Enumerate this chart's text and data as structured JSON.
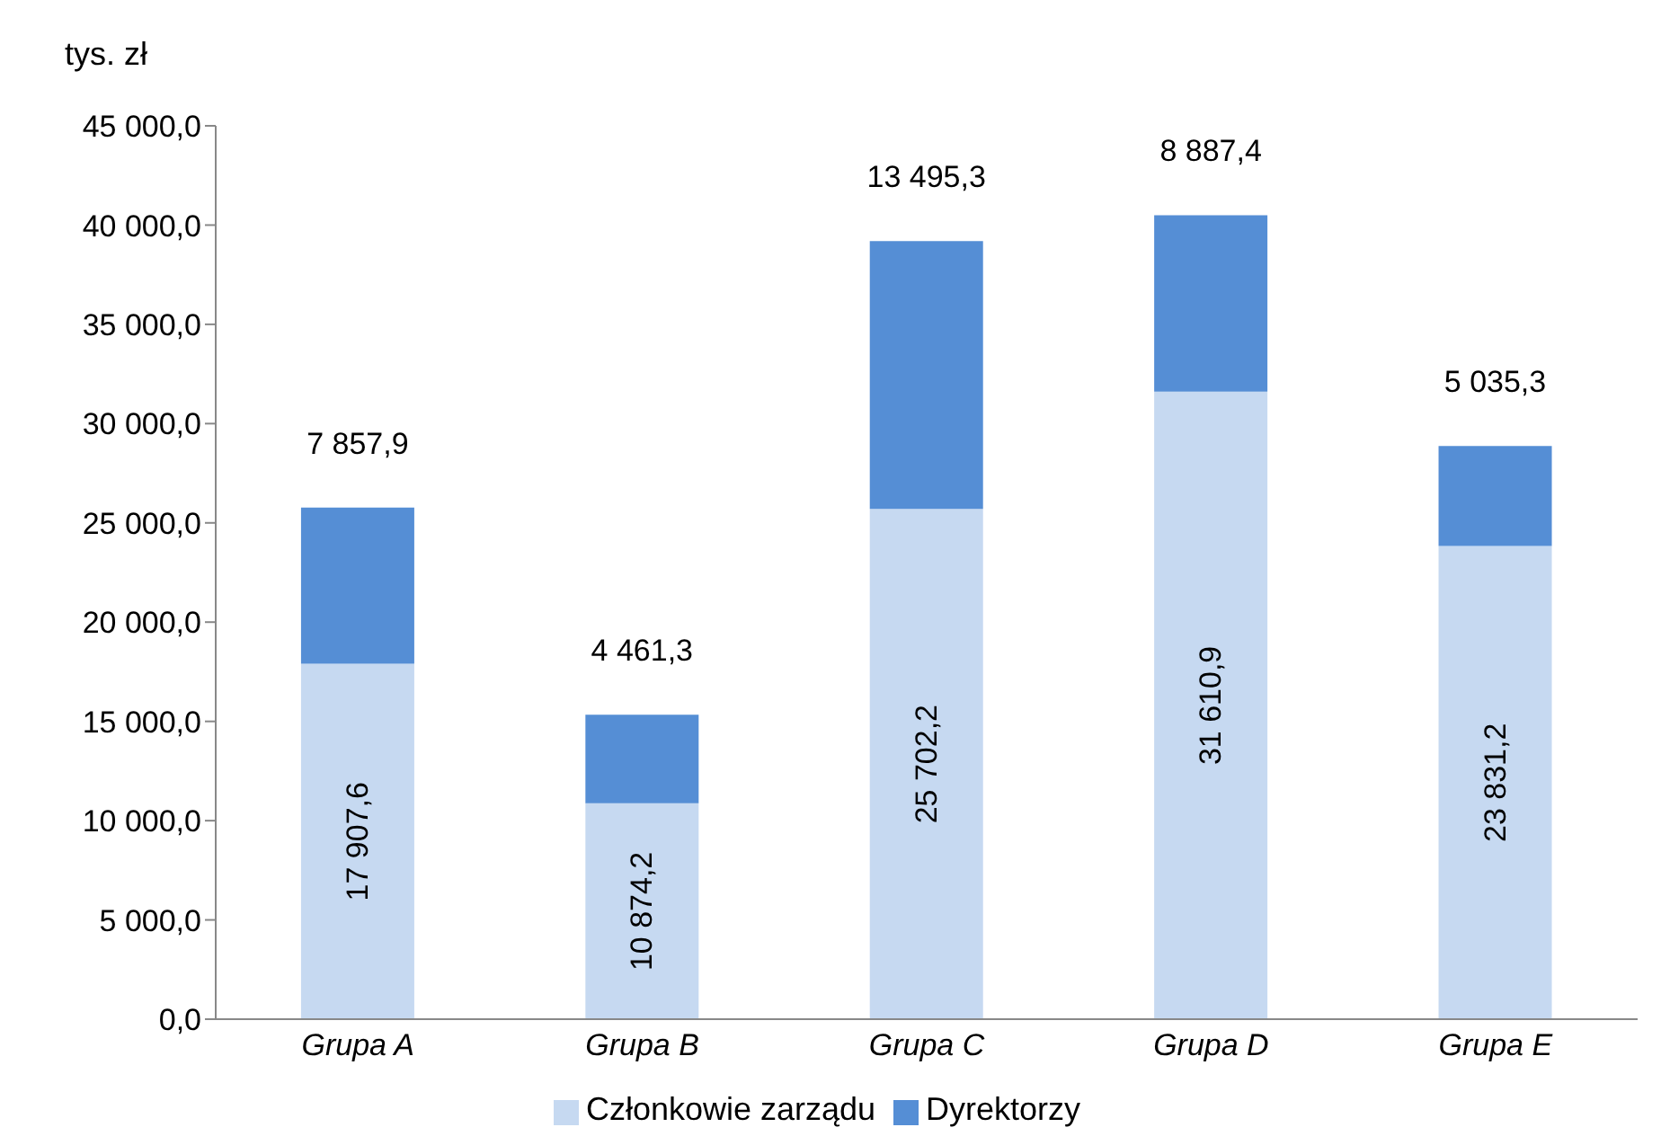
{
  "chart_data": {
    "type": "bar",
    "stacked": true,
    "ylabel": "tys. zł",
    "categories": [
      "Grupa A",
      "Grupa B",
      "Grupa C",
      "Grupa D",
      "Grupa E"
    ],
    "series": [
      {
        "name": "Członkowie zarządu",
        "color": "#c6d9f1",
        "values": [
          17907.6,
          10874.2,
          25702.2,
          31610.9,
          23831.2
        ],
        "value_labels": [
          "17 907,6",
          "10 874,2",
          "25 702,2",
          "31 610,9",
          "23 831,2"
        ]
      },
      {
        "name": "Dyrektorzy",
        "color": "#558ed5",
        "values": [
          7857.9,
          4461.3,
          13495.3,
          8887.4,
          5035.3
        ],
        "value_labels": [
          "7 857,9",
          "4 461,3",
          "13 495,3",
          "8 887,4",
          "5 035,3"
        ]
      }
    ],
    "ylim": [
      0,
      45000
    ],
    "yticks": [
      {
        "value": 0,
        "label": "0,0"
      },
      {
        "value": 5000,
        "label": "5 000,0"
      },
      {
        "value": 10000,
        "label": "10 000,0"
      },
      {
        "value": 15000,
        "label": "15 000,0"
      },
      {
        "value": 20000,
        "label": "20 000,0"
      },
      {
        "value": 25000,
        "label": "25 000,0"
      },
      {
        "value": 30000,
        "label": "30 000,0"
      },
      {
        "value": 35000,
        "label": "35 000,0"
      },
      {
        "value": 40000,
        "label": "40 000,0"
      },
      {
        "value": 45000,
        "label": "45 000,0"
      }
    ],
    "grid": false,
    "legend": "bottom"
  }
}
